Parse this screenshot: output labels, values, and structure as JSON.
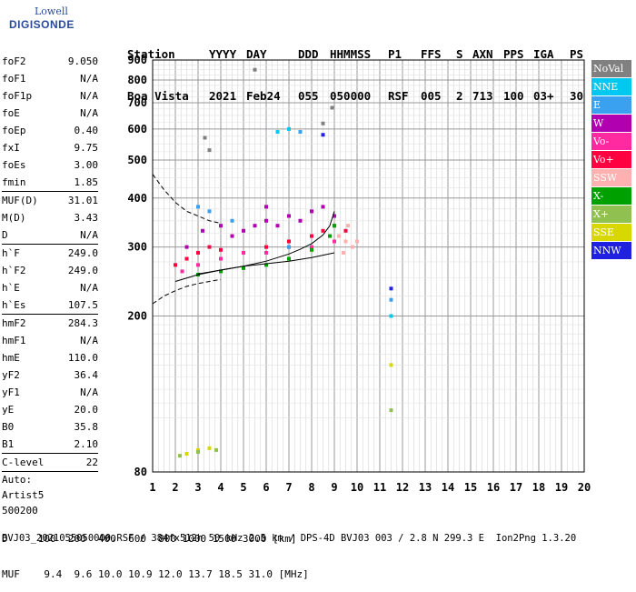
{
  "logo": {
    "line1": "Lowell",
    "line2": "DIGISONDE"
  },
  "header": {
    "row1": [
      "Station",
      "YYYY",
      "DAY",
      "DDD",
      "HHMMSS",
      "P1",
      "FFS",
      "S",
      "AXN",
      "PPS",
      "IGA",
      "PS"
    ],
    "row2": [
      "Boa Vista",
      "2021",
      "Feb24",
      "055",
      "050000",
      "RSF",
      "005",
      "2",
      "713",
      "100",
      "03+",
      "30"
    ]
  },
  "params_group1": [
    {
      "k": "foF2",
      "v": "9.050"
    },
    {
      "k": "foF1",
      "v": "N/A"
    },
    {
      "k": "foF1p",
      "v": "N/A"
    },
    {
      "k": "foE",
      "v": "N/A"
    },
    {
      "k": "foEp",
      "v": "0.40"
    },
    {
      "k": "fxI",
      "v": "9.75"
    },
    {
      "k": "foEs",
      "v": "3.00"
    },
    {
      "k": "fmin",
      "v": "1.85"
    }
  ],
  "params_group2": [
    {
      "k": "MUF(D)",
      "v": "31.01"
    },
    {
      "k": "M(D)",
      "v": "3.43"
    },
    {
      "k": "D",
      "v": "N/A"
    }
  ],
  "params_group3": [
    {
      "k": "h`F",
      "v": "249.0"
    },
    {
      "k": "h`F2",
      "v": "249.0"
    },
    {
      "k": "h`E",
      "v": "N/A"
    },
    {
      "k": "h`Es",
      "v": "107.5"
    }
  ],
  "params_group4": [
    {
      "k": "hmF2",
      "v": "284.3"
    },
    {
      "k": "hmF1",
      "v": "N/A"
    },
    {
      "k": "hmE",
      "v": "110.0"
    },
    {
      "k": "yF2",
      "v": "36.4"
    },
    {
      "k": "yF1",
      "v": "N/A"
    },
    {
      "k": "yE",
      "v": "20.0"
    },
    {
      "k": "B0",
      "v": "35.8"
    },
    {
      "k": "B1",
      "v": "2.10"
    }
  ],
  "clevel": {
    "k": "C-level",
    "v": "22"
  },
  "auto": [
    "Auto:",
    "Artist5",
    "500200"
  ],
  "legend": [
    {
      "label": "NoVal",
      "color": "#808080"
    },
    {
      "label": "NNE",
      "color": "#00c8f0"
    },
    {
      "label": "E",
      "color": "#3aa0f0"
    },
    {
      "label": "W",
      "color": "#b000b0"
    },
    {
      "label": "Vo-",
      "color": "#ff2aa0"
    },
    {
      "label": "Vo+",
      "color": "#ff0040"
    },
    {
      "label": "SSW",
      "color": "#ffb0b0"
    },
    {
      "label": "X-",
      "color": "#00a000"
    },
    {
      "label": "X+",
      "color": "#90c050"
    },
    {
      "label": "SSE",
      "color": "#d8d800"
    },
    {
      "label": "NNW",
      "color": "#2020e0"
    }
  ],
  "footer": {
    "row_d": "D     100  200  400  600  800 1000 1500 3000 [km]",
    "row_muf": "MUF    9.4  9.6 10.0 10.9 12.0 13.7 18.5 31.0 [MHz]",
    "filename": "BVJ03_2021055050000.RSF / 384fx512h 50 kHz 2.5 km / DPS-4D BVJ03 003 / 2.8 N 299.3 E  Ion2Png 1.3.20"
  },
  "chart_data": {
    "type": "scatter",
    "x_ticks": [
      "1",
      "2",
      "3",
      "4",
      "5",
      "6",
      "7",
      "8",
      "9",
      "10",
      "11",
      "12",
      "13",
      "14",
      "15",
      "16",
      "17",
      "18",
      "19",
      "20"
    ],
    "y_ticks": [
      "80",
      "200",
      "300",
      "400",
      "500",
      "600",
      "700",
      "800",
      "900"
    ],
    "xlim": [
      1,
      20
    ],
    "ylim": [
      80,
      900
    ],
    "y_scale": "log",
    "grid": true,
    "series": [
      {
        "color": "#b000b0",
        "points": [
          [
            2.5,
            300
          ],
          [
            3.2,
            330
          ],
          [
            4,
            340
          ],
          [
            5,
            330
          ],
          [
            5.5,
            340
          ],
          [
            6,
            350
          ],
          [
            6.5,
            340
          ],
          [
            7,
            360
          ],
          [
            7.5,
            350
          ],
          [
            8,
            370
          ],
          [
            8.5,
            380
          ],
          [
            9,
            360
          ],
          [
            4.5,
            320
          ],
          [
            6,
            380
          ]
        ]
      },
      {
        "color": "#ff0040",
        "points": [
          [
            2,
            270
          ],
          [
            2.5,
            280
          ],
          [
            3,
            290
          ],
          [
            3.5,
            300
          ],
          [
            4,
            295
          ],
          [
            5,
            290
          ],
          [
            6,
            300
          ],
          [
            7,
            310
          ],
          [
            8,
            320
          ],
          [
            8.5,
            330
          ],
          [
            9,
            340
          ],
          [
            9.5,
            330
          ]
        ]
      },
      {
        "color": "#ff2aa0",
        "points": [
          [
            2.3,
            260
          ],
          [
            3,
            270
          ],
          [
            4,
            280
          ],
          [
            5,
            290
          ],
          [
            6,
            290
          ],
          [
            7,
            300
          ],
          [
            8,
            300
          ],
          [
            9,
            310
          ]
        ]
      },
      {
        "color": "#ffb0b0",
        "points": [
          [
            9.2,
            320
          ],
          [
            9.5,
            310
          ],
          [
            9.8,
            300
          ],
          [
            10,
            310
          ],
          [
            9.6,
            340
          ],
          [
            9.4,
            290
          ]
        ]
      },
      {
        "color": "#00a000",
        "points": [
          [
            3,
            255
          ],
          [
            4,
            260
          ],
          [
            5,
            265
          ],
          [
            6,
            270
          ],
          [
            7,
            280
          ],
          [
            8,
            295
          ],
          [
            8.8,
            320
          ],
          [
            9,
            340
          ]
        ]
      },
      {
        "color": "#3aa0f0",
        "points": [
          [
            3,
            380
          ],
          [
            3.5,
            370
          ],
          [
            4.5,
            350
          ],
          [
            7,
            300
          ],
          [
            7.5,
            590
          ],
          [
            11.5,
            220
          ]
        ]
      },
      {
        "color": "#00c8f0",
        "points": [
          [
            11.5,
            200
          ],
          [
            6.5,
            590
          ],
          [
            7,
            600
          ]
        ]
      },
      {
        "color": "#2020e0",
        "points": [
          [
            11.5,
            235
          ],
          [
            8.5,
            580
          ]
        ]
      },
      {
        "color": "#d8d800",
        "points": [
          [
            2.5,
            89
          ],
          [
            3,
            91
          ],
          [
            3.5,
            92
          ],
          [
            11.5,
            150
          ]
        ]
      },
      {
        "color": "#90c050",
        "points": [
          [
            2.2,
            88
          ],
          [
            3,
            90
          ],
          [
            3.8,
            91
          ],
          [
            11.5,
            115
          ]
        ]
      },
      {
        "color": "#808080",
        "points": [
          [
            3.3,
            570
          ],
          [
            3.5,
            530
          ],
          [
            5.5,
            850
          ],
          [
            8.5,
            620
          ],
          [
            8.9,
            680
          ]
        ]
      }
    ],
    "curves": [
      {
        "style": "dashed",
        "points": [
          [
            1,
            460
          ],
          [
            1.5,
            420
          ],
          [
            2,
            390
          ],
          [
            2.5,
            370
          ],
          [
            3,
            360
          ],
          [
            3.5,
            350
          ],
          [
            4,
            345
          ]
        ]
      },
      {
        "style": "dashed",
        "points": [
          [
            1,
            215
          ],
          [
            1.5,
            225
          ],
          [
            2,
            232
          ],
          [
            2.5,
            238
          ],
          [
            3,
            242
          ],
          [
            3.5,
            245
          ],
          [
            4,
            248
          ]
        ]
      },
      {
        "style": "solid",
        "points": [
          [
            2,
            245
          ],
          [
            3,
            255
          ],
          [
            4,
            262
          ],
          [
            5,
            268
          ],
          [
            6,
            272
          ],
          [
            7,
            276
          ],
          [
            8,
            282
          ],
          [
            8.5,
            286
          ],
          [
            9,
            290
          ]
        ]
      },
      {
        "style": "solid",
        "points": [
          [
            3,
            256
          ],
          [
            4,
            262
          ],
          [
            5,
            268
          ],
          [
            6,
            276
          ],
          [
            7,
            288
          ],
          [
            7.5,
            296
          ],
          [
            8,
            306
          ],
          [
            8.5,
            322
          ],
          [
            8.8,
            340
          ],
          [
            9,
            370
          ]
        ]
      }
    ]
  }
}
